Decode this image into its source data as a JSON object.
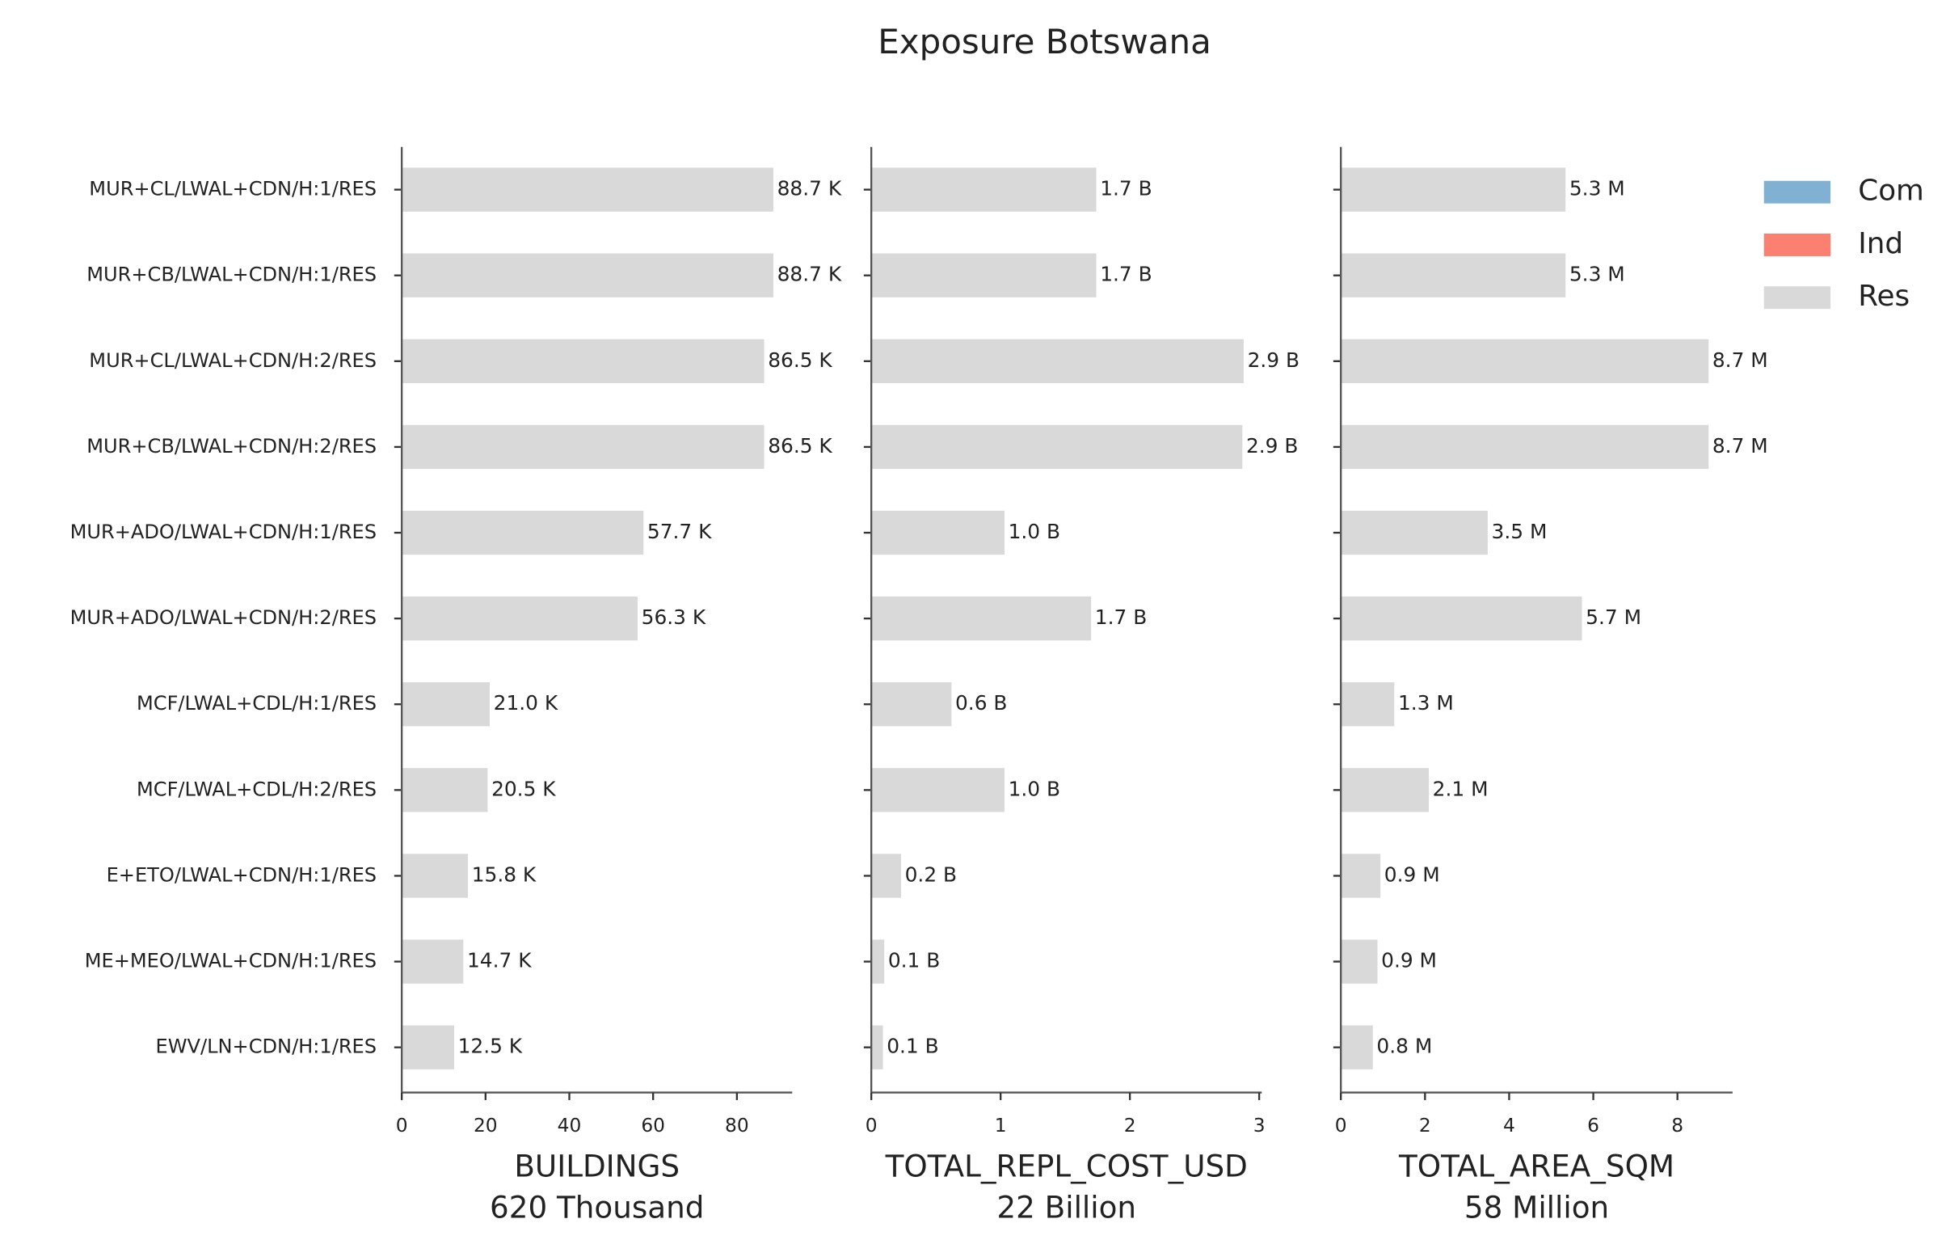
{
  "title": "Exposure Botswana",
  "legend": [
    {
      "name": "Com",
      "color": "#80b1d3"
    },
    {
      "name": "Ind",
      "color": "#fb8072"
    },
    {
      "name": "Res",
      "color": "#d9d9d9"
    }
  ],
  "chart_data": [
    {
      "type": "barh",
      "xlabel": "BUILDINGS",
      "total": "620 Thousand",
      "categories": [
        "MUR+CL/LWAL+CDN/H:1/RES",
        "MUR+CB/LWAL+CDN/H:1/RES",
        "MUR+CL/LWAL+CDN/H:2/RES",
        "MUR+CB/LWAL+CDN/H:2/RES",
        "MUR+ADO/LWAL+CDN/H:1/RES",
        "MUR+ADO/LWAL+CDN/H:2/RES",
        "MCF/LWAL+CDL/H:1/RES",
        "MCF/LWAL+CDL/H:2/RES",
        "E+ETO/LWAL+CDN/H:1/RES",
        "ME+MEO/LWAL+CDN/H:1/RES",
        "EWV/LN+CDN/H:1/RES"
      ],
      "values": [
        88.7,
        88.7,
        86.5,
        86.5,
        57.7,
        56.3,
        21.0,
        20.5,
        15.8,
        14.7,
        12.5
      ],
      "value_labels": [
        "88.7 K",
        "88.7 K",
        "86.5 K",
        "86.5 K",
        "57.7 K",
        "56.3 K",
        "21.0 K",
        "20.5 K",
        "15.8 K",
        "14.7 K",
        "12.5 K"
      ],
      "color": "#d9d9d9",
      "xlim": [
        0,
        93.2
      ],
      "xticks": [
        0,
        20,
        40,
        60,
        80
      ]
    },
    {
      "type": "barh",
      "xlabel": "TOTAL_REPL_COST_USD",
      "total": "22 Billion",
      "values": [
        1.74,
        1.74,
        2.88,
        2.87,
        1.03,
        1.7,
        0.62,
        1.03,
        0.23,
        0.1,
        0.09
      ],
      "value_labels": [
        "1.7 B",
        "1.7 B",
        "2.9 B",
        "2.9 B",
        "1.0 B",
        "1.7 B",
        "0.6 B",
        "1.0 B",
        "0.2 B",
        "0.1 B",
        "0.1 B"
      ],
      "color": "#d9d9d9",
      "xlim": [
        0,
        3.02
      ],
      "xticks": [
        0,
        1,
        2,
        3
      ]
    },
    {
      "type": "barh",
      "xlabel": "TOTAL_AREA_SQM",
      "total": "58 Million",
      "values": [
        5.34,
        5.34,
        8.74,
        8.74,
        3.49,
        5.73,
        1.27,
        2.09,
        0.94,
        0.87,
        0.76
      ],
      "value_labels": [
        "5.3 M",
        "5.3 M",
        "8.7 M",
        "8.7 M",
        "3.5 M",
        "5.7 M",
        "1.3 M",
        "2.1 M",
        "0.9 M",
        "0.9 M",
        "0.8 M"
      ],
      "color": "#d9d9d9",
      "xlim": [
        0,
        9.31
      ],
      "xticks": [
        0,
        2,
        4,
        6,
        8
      ]
    }
  ]
}
